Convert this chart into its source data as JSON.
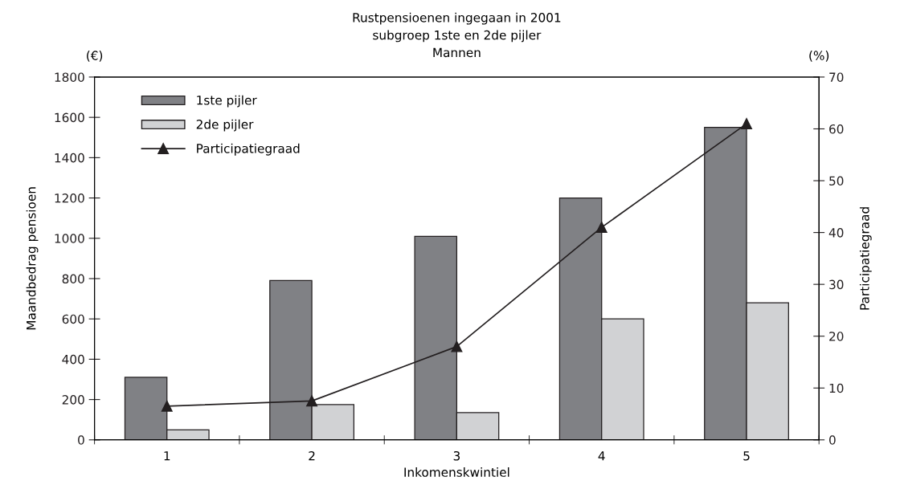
{
  "chart_data": {
    "type": "bar",
    "title": "Rustpensioenen ingegaan in 2001\nsubgroep 1ste en 2de pijler\nMannen",
    "xlabel": "Inkomenskwintiel",
    "ylabel": "Maandbedrag pensioen",
    "y2label": "Participatiegraad",
    "annotations": [
      "(€)",
      "(%)"
    ],
    "categories": [
      "1",
      "2",
      "3",
      "4",
      "5"
    ],
    "series": [
      {
        "name": "1ste pijler",
        "color": "#808185",
        "values": [
          310,
          790,
          1010,
          1200,
          1550
        ]
      },
      {
        "name": "2de pijler",
        "color": "#d1d2d4",
        "values": [
          50,
          175,
          135,
          600,
          680
        ]
      },
      {
        "name": "Participatiegraad",
        "type": "line",
        "axis": "y2",
        "color": "#231f20",
        "marker": "triangle",
        "values": [
          6.5,
          7.5,
          18,
          41,
          61
        ]
      }
    ],
    "ylim": [
      0,
      1800
    ],
    "yticks": [
      0,
      200,
      400,
      600,
      800,
      1000,
      1200,
      1400,
      1600,
      1800
    ],
    "y2lim": [
      0,
      70
    ],
    "y2ticks": [
      0,
      10,
      20,
      30,
      40,
      50,
      60,
      70
    ],
    "grid": false,
    "legend": "top left"
  }
}
